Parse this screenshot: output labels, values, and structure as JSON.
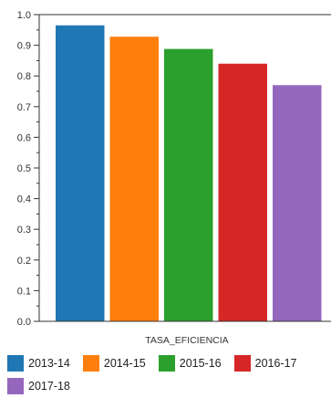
{
  "chart_data": {
    "type": "bar",
    "xlabel": "TASA_EFICIENCIA",
    "ylabel": "",
    "ylim": [
      0,
      1.0
    ],
    "yticks": [
      "0.0",
      "0.1",
      "0.2",
      "0.3",
      "0.4",
      "0.5",
      "0.6",
      "0.7",
      "0.8",
      "0.9",
      "1.0"
    ],
    "grid": false,
    "legend_position": "bottom",
    "categories": [
      "2013-14",
      "2014-15",
      "2015-16",
      "2016-17",
      "2017-18"
    ],
    "values": [
      0.965,
      0.928,
      0.888,
      0.84,
      0.77
    ],
    "colors": [
      "#1f77b4",
      "#ff7f0e",
      "#2ca02c",
      "#d62728",
      "#9467bd"
    ]
  }
}
